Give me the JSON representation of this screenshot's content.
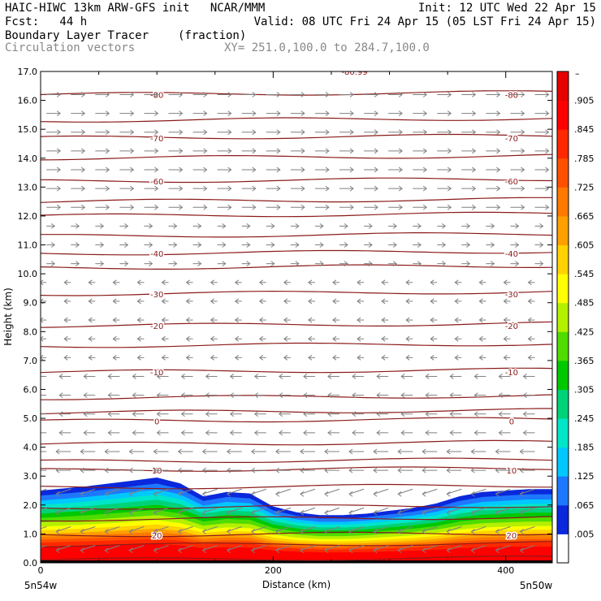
{
  "header": {
    "title": "HAIC-HIWC 13km ARW-GFS init   NCAR/MMM",
    "init": "Init: 12 UTC Wed 22 Apr 15",
    "fcst": "Fcst:   44 h",
    "valid": "Valid: 08 UTC Fri 24 Apr 15 (05 LST Fri 24 Apr 15)",
    "field": "Boundary Layer Tracer",
    "units": "(fraction)",
    "vectors": "Circulation vectors",
    "xy": "XY= 251.0,100.0 to 284.7,100.0"
  },
  "chart_data": {
    "type": "heatmap",
    "xlabel": "Distance (km)",
    "ylabel": "Height (km)",
    "xlim": [
      0,
      440
    ],
    "ylim": [
      0,
      17
    ],
    "xticks": [
      "0",
      "200",
      "400"
    ],
    "yticks": [
      "0.0",
      "1.0",
      "2.0",
      "3.0",
      "4.0",
      "5.0",
      "6.0",
      "7.0",
      "8.0",
      "9.0",
      "10.0",
      "11.0",
      "12.0",
      "13.0",
      "14.0",
      "15.0",
      "16.0",
      "17.0"
    ],
    "endpoints": {
      "left": "5n54w",
      "right": "5n50w"
    },
    "colorbar": {
      "labels": [
        ".005",
        ".065",
        ".125",
        ".185",
        ".245",
        ".305",
        ".365",
        ".425",
        ".485",
        ".545",
        ".605",
        ".665",
        ".725",
        ".785",
        ".845",
        ".905"
      ],
      "top_label": "–",
      "colors": [
        "#ffffff",
        "#0a28dc",
        "#1e78ff",
        "#00c8ff",
        "#00e6c8",
        "#00d278",
        "#00c800",
        "#50dc00",
        "#b4f000",
        "#ffff00",
        "#ffd200",
        "#ffa000",
        "#ff7800",
        "#ff5000",
        "#ff2800",
        "#ff0000",
        "#e60000"
      ]
    },
    "boundary_layer_top_km": {
      "x": [
        0,
        40,
        80,
        100,
        120,
        140,
        160,
        180,
        200,
        220,
        240,
        260,
        280,
        300,
        320,
        340,
        360,
        380,
        400,
        420,
        440
      ],
      "y": [
        2.5,
        2.65,
        2.85,
        2.95,
        2.75,
        2.3,
        2.45,
        2.4,
        1.95,
        1.75,
        1.65,
        1.65,
        1.7,
        1.8,
        1.9,
        2.05,
        2.3,
        2.45,
        2.5,
        2.55,
        2.55
      ]
    },
    "isotherms": [
      {
        "value": -80,
        "label": "-80",
        "height_km": 16.2
      },
      {
        "value": -70,
        "label": "-70",
        "height_km": 14.7
      },
      {
        "value": -60,
        "label": "-60",
        "height_km": 13.2
      },
      {
        "value": -40,
        "label": "-40",
        "height_km": 10.7
      },
      {
        "value": -30,
        "label": "-30",
        "height_km": 9.3
      },
      {
        "value": -20,
        "label": "-20",
        "height_km": 8.2
      },
      {
        "value": -10,
        "label": "-10",
        "height_km": 6.6
      },
      {
        "value": 0,
        "label": "0",
        "height_km": 4.9
      },
      {
        "value": 10,
        "label": "10",
        "height_km": 3.2
      },
      {
        "value": 20,
        "label": "20",
        "height_km": 0.95
      }
    ],
    "top_annotation": "-80.99",
    "extra_isotherm_heights_km": [
      15.3,
      14.0,
      12.5,
      12.0,
      11.3,
      10.2,
      7.5,
      5.7,
      5.2,
      4.1,
      3.5,
      2.6,
      1.9,
      1.5,
      0.6,
      0.1
    ]
  }
}
